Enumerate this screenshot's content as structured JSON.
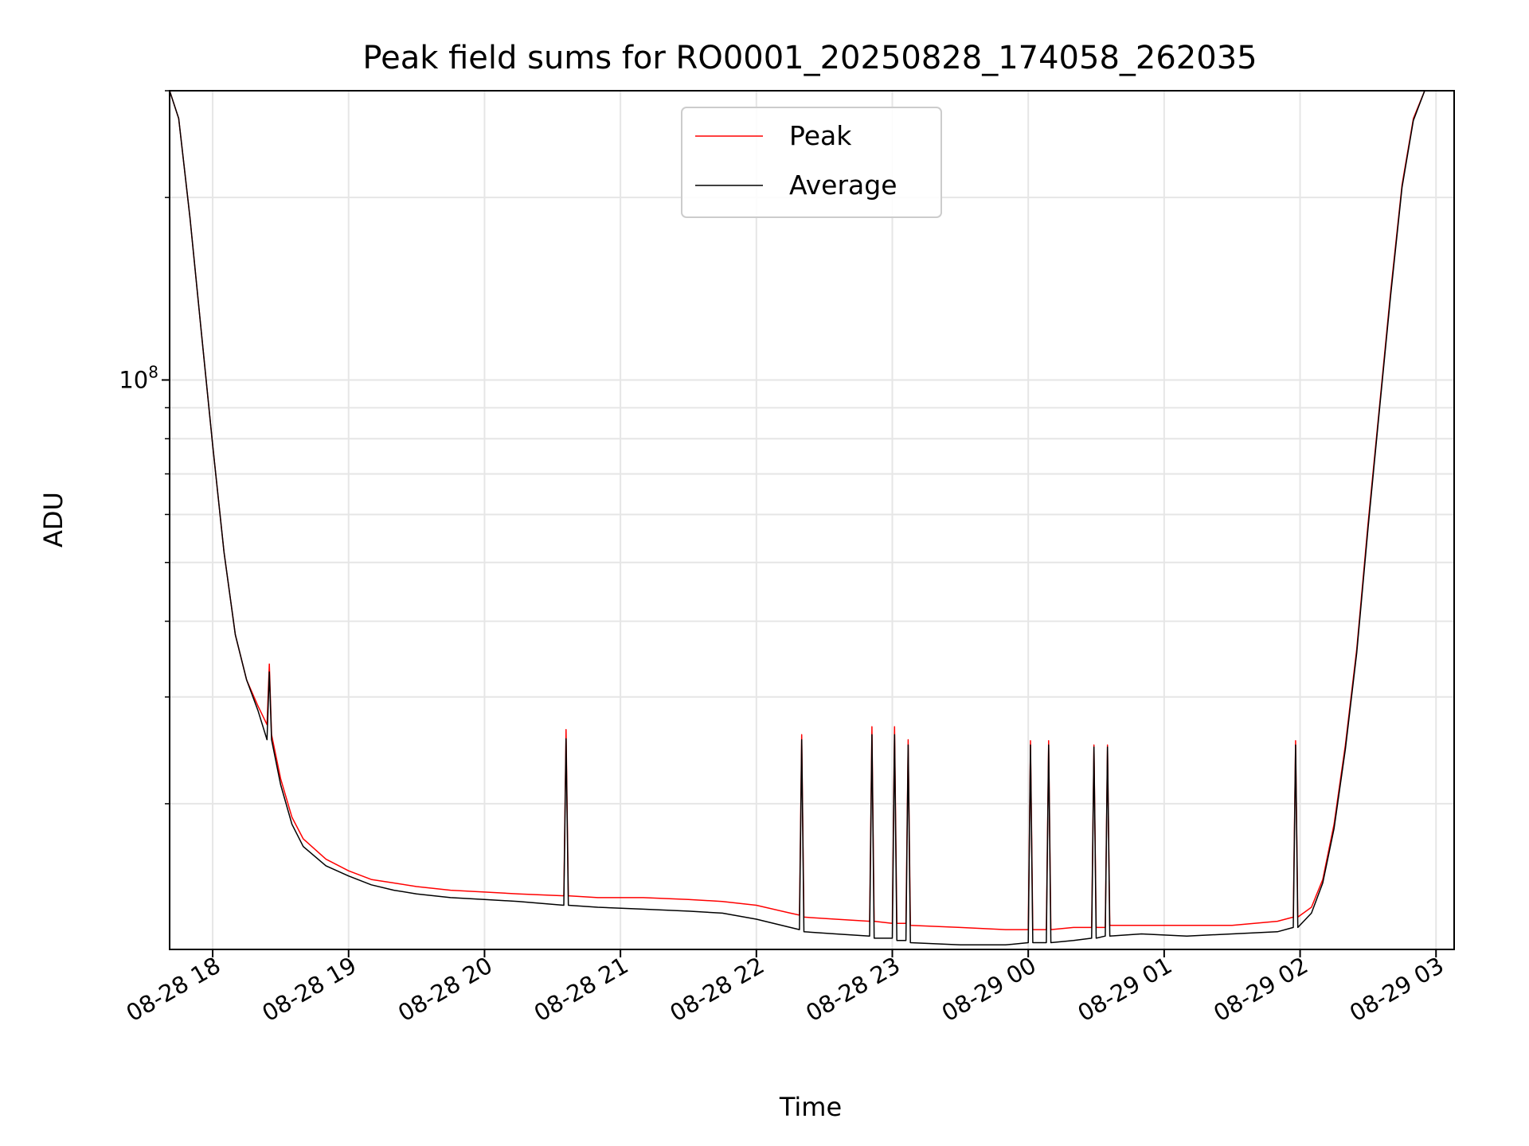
{
  "chart_data": {
    "type": "line",
    "title": "Peak field sums for RO0001_20250828_174058_262035",
    "xlabel": "Time",
    "ylabel": "ADU",
    "x_axis": "datetime",
    "y_scale": "log",
    "xlim": [
      "2025-08-28 17:41",
      "2025-08-29 03:08"
    ],
    "ylim": [
      11500000,
      300000000
    ],
    "x_ticks": [
      {
        "value": "2025-08-28 18:00",
        "label": "08-28 18"
      },
      {
        "value": "2025-08-28 19:00",
        "label": "08-28 19"
      },
      {
        "value": "2025-08-28 20:00",
        "label": "08-28 20"
      },
      {
        "value": "2025-08-28 21:00",
        "label": "08-28 21"
      },
      {
        "value": "2025-08-28 22:00",
        "label": "08-28 22"
      },
      {
        "value": "2025-08-28 23:00",
        "label": "08-28 23"
      },
      {
        "value": "2025-08-29 00:00",
        "label": "08-29 00"
      },
      {
        "value": "2025-08-29 01:00",
        "label": "08-29 01"
      },
      {
        "value": "2025-08-29 02:00",
        "label": "08-29 02"
      },
      {
        "value": "2025-08-29 03:00",
        "label": "08-29 03"
      }
    ],
    "y_ticks": [
      {
        "value": 100000000,
        "base": "10",
        "exp": "8"
      }
    ],
    "grid": true,
    "legend_position": "upper center",
    "series": [
      {
        "name": "Peak",
        "color": "#ff0000",
        "x": [
          "2025-08-28 17:41",
          "2025-08-28 17:45",
          "2025-08-28 17:50",
          "2025-08-28 17:55",
          "2025-08-28 18:00",
          "2025-08-28 18:05",
          "2025-08-28 18:10",
          "2025-08-28 18:15",
          "2025-08-28 18:20",
          "2025-08-28 18:24",
          "2025-08-28 18:25",
          "2025-08-28 18:26",
          "2025-08-28 18:30",
          "2025-08-28 18:35",
          "2025-08-28 18:40",
          "2025-08-28 18:50",
          "2025-08-28 19:00",
          "2025-08-28 19:10",
          "2025-08-28 19:20",
          "2025-08-28 19:30",
          "2025-08-28 19:45",
          "2025-08-28 20:00",
          "2025-08-28 20:15",
          "2025-08-28 20:35",
          "2025-08-28 20:36",
          "2025-08-28 20:37",
          "2025-08-28 20:50",
          "2025-08-28 21:10",
          "2025-08-28 21:30",
          "2025-08-28 21:45",
          "2025-08-28 22:00",
          "2025-08-28 22:15",
          "2025-08-28 22:19",
          "2025-08-28 22:20",
          "2025-08-28 22:21",
          "2025-08-28 22:35",
          "2025-08-28 22:50",
          "2025-08-28 22:51",
          "2025-08-28 22:52",
          "2025-08-28 23:00",
          "2025-08-28 23:01",
          "2025-08-28 23:02",
          "2025-08-28 23:06",
          "2025-08-28 23:07",
          "2025-08-28 23:08",
          "2025-08-28 23:30",
          "2025-08-28 23:50",
          "2025-08-29 00:00",
          "2025-08-29 00:01",
          "2025-08-29 00:02",
          "2025-08-29 00:08",
          "2025-08-29 00:09",
          "2025-08-29 00:10",
          "2025-08-29 00:20",
          "2025-08-29 00:28",
          "2025-08-29 00:29",
          "2025-08-29 00:30",
          "2025-08-29 00:34",
          "2025-08-29 00:35",
          "2025-08-29 00:36",
          "2025-08-29 00:50",
          "2025-08-29 01:10",
          "2025-08-29 01:30",
          "2025-08-29 01:50",
          "2025-08-29 01:57",
          "2025-08-29 01:58",
          "2025-08-29 01:59",
          "2025-08-29 02:05",
          "2025-08-29 02:10",
          "2025-08-29 02:15",
          "2025-08-29 02:20",
          "2025-08-29 02:25",
          "2025-08-29 02:30",
          "2025-08-29 02:35",
          "2025-08-29 02:40",
          "2025-08-29 02:45",
          "2025-08-29 02:50",
          "2025-08-29 02:55",
          "2025-08-29 02:58"
        ],
        "y": [
          300000000,
          270000000,
          185000000,
          120000000,
          78000000,
          52000000,
          38000000,
          32000000,
          29000000,
          27000000,
          34000000,
          26000000,
          22000000,
          19000000,
          17500000,
          16200000,
          15500000,
          15000000,
          14800000,
          14600000,
          14400000,
          14300000,
          14200000,
          14100000,
          26500000,
          14100000,
          14000000,
          14000000,
          13900000,
          13800000,
          13600000,
          13200000,
          13100000,
          26000000,
          13000000,
          12900000,
          12800000,
          26800000,
          12800000,
          12700000,
          26800000,
          12700000,
          12700000,
          25500000,
          12600000,
          12500000,
          12400000,
          12400000,
          25400000,
          12400000,
          12400000,
          25400000,
          12400000,
          12500000,
          12500000,
          25000000,
          12500000,
          12500000,
          25000000,
          12600000,
          12600000,
          12600000,
          12600000,
          12800000,
          13000000,
          25400000,
          13000000,
          13500000,
          15000000,
          18500000,
          25000000,
          36000000,
          58000000,
          90000000,
          140000000,
          210000000,
          270000000,
          300000000,
          300000000
        ]
      },
      {
        "name": "Average",
        "color": "#000000",
        "x": [
          "2025-08-28 17:41",
          "2025-08-28 17:45",
          "2025-08-28 17:50",
          "2025-08-28 17:55",
          "2025-08-28 18:00",
          "2025-08-28 18:05",
          "2025-08-28 18:10",
          "2025-08-28 18:15",
          "2025-08-28 18:20",
          "2025-08-28 18:24",
          "2025-08-28 18:25",
          "2025-08-28 18:26",
          "2025-08-28 18:30",
          "2025-08-28 18:35",
          "2025-08-28 18:40",
          "2025-08-28 18:50",
          "2025-08-28 19:00",
          "2025-08-28 19:10",
          "2025-08-28 19:20",
          "2025-08-28 19:30",
          "2025-08-28 19:45",
          "2025-08-28 20:00",
          "2025-08-28 20:15",
          "2025-08-28 20:35",
          "2025-08-28 20:36",
          "2025-08-28 20:37",
          "2025-08-28 20:50",
          "2025-08-28 21:10",
          "2025-08-28 21:30",
          "2025-08-28 21:45",
          "2025-08-28 22:00",
          "2025-08-28 22:15",
          "2025-08-28 22:19",
          "2025-08-28 22:20",
          "2025-08-28 22:21",
          "2025-08-28 22:35",
          "2025-08-28 22:50",
          "2025-08-28 22:51",
          "2025-08-28 22:52",
          "2025-08-28 23:00",
          "2025-08-28 23:01",
          "2025-08-28 23:02",
          "2025-08-28 23:06",
          "2025-08-28 23:07",
          "2025-08-28 23:08",
          "2025-08-28 23:30",
          "2025-08-28 23:50",
          "2025-08-29 00:00",
          "2025-08-29 00:01",
          "2025-08-29 00:02",
          "2025-08-29 00:08",
          "2025-08-29 00:09",
          "2025-08-29 00:10",
          "2025-08-29 00:20",
          "2025-08-29 00:28",
          "2025-08-29 00:29",
          "2025-08-29 00:30",
          "2025-08-29 00:34",
          "2025-08-29 00:35",
          "2025-08-29 00:36",
          "2025-08-29 00:50",
          "2025-08-29 01:10",
          "2025-08-29 01:30",
          "2025-08-29 01:50",
          "2025-08-29 01:57",
          "2025-08-29 01:58",
          "2025-08-29 01:59",
          "2025-08-29 02:05",
          "2025-08-29 02:10",
          "2025-08-29 02:15",
          "2025-08-29 02:20",
          "2025-08-29 02:25",
          "2025-08-29 02:30",
          "2025-08-29 02:35",
          "2025-08-29 02:40",
          "2025-08-29 02:45",
          "2025-08-29 02:50",
          "2025-08-29 02:55",
          "2025-08-29 02:58"
        ],
        "y": [
          300000000,
          270000000,
          185000000,
          120000000,
          78000000,
          52000000,
          38000000,
          32000000,
          28500000,
          25500000,
          33000000,
          25500000,
          21500000,
          18500000,
          17000000,
          15800000,
          15200000,
          14700000,
          14400000,
          14200000,
          14000000,
          13900000,
          13800000,
          13600000,
          25600000,
          13600000,
          13500000,
          13400000,
          13300000,
          13200000,
          12900000,
          12500000,
          12400000,
          25500000,
          12300000,
          12200000,
          12100000,
          26000000,
          12000000,
          12000000,
          26000000,
          11900000,
          11900000,
          25000000,
          11800000,
          11700000,
          11700000,
          11800000,
          25000000,
          11800000,
          11800000,
          25000000,
          11800000,
          11900000,
          12000000,
          24800000,
          12000000,
          12100000,
          24800000,
          12100000,
          12200000,
          12100000,
          12200000,
          12300000,
          12500000,
          25000000,
          12500000,
          13200000,
          14800000,
          18200000,
          24600000,
          35500000,
          57000000,
          89000000,
          138000000,
          208000000,
          268000000,
          300000000,
          300000000
        ]
      }
    ]
  }
}
